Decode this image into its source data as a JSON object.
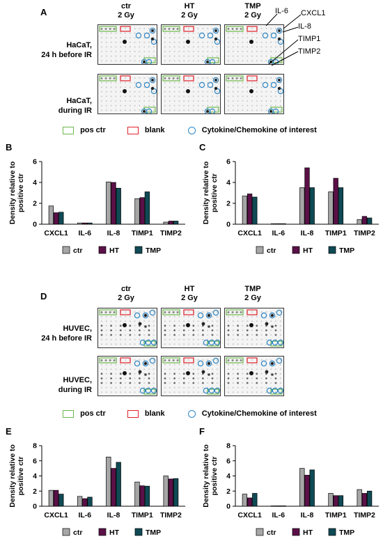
{
  "colors": {
    "ctr": "#a6a6a6",
    "HT": "#5b1048",
    "TMP": "#0f4a55",
    "pos_ctr": "#6bb84a",
    "blank": "#e0202a",
    "interest": "#2e86c6"
  },
  "panels": [
    {
      "letter": "A",
      "columns": [
        [
          "ctr",
          "2 Gy"
        ],
        [
          "HT",
          "2 Gy"
        ],
        [
          "TMP",
          "2 Gy"
        ]
      ],
      "rows": [
        [
          "HaCaT,",
          "24 h before IR"
        ],
        [
          "HaCaT,",
          "during IR"
        ]
      ],
      "callouts": [
        "IL-6",
        "CXCL1",
        "IL-8",
        "TIMP1",
        "TIMP2"
      ]
    },
    {
      "letter": "D",
      "columns": [
        [
          "ctr",
          "2 Gy"
        ],
        [
          "HT",
          "2 Gy"
        ],
        [
          "TMP",
          "2 Gy"
        ]
      ],
      "rows": [
        [
          "HUVEC,",
          "24 h before IR"
        ],
        [
          "HUVEC,",
          "during IR"
        ]
      ]
    }
  ],
  "blot_legend": {
    "pos_ctr": "pos ctr",
    "blank": "blank",
    "interest": "Cytokine/Chemokine of interest"
  },
  "chart_data": [
    {
      "panel": "B",
      "type": "bar",
      "categories": [
        "CXCL1",
        "IL-6",
        "IL-8",
        "TIMP1",
        "TIMP2"
      ],
      "ylabel": "Density relative to positive ctr",
      "ylim": [
        0,
        6
      ],
      "yticks": [
        0,
        2,
        4,
        6
      ],
      "series": [
        {
          "name": "ctr",
          "values": [
            1.75,
            0.12,
            4.05,
            2.45,
            0.2
          ]
        },
        {
          "name": "HT",
          "values": [
            1.1,
            0.12,
            4.0,
            2.55,
            0.3
          ]
        },
        {
          "name": "TMP",
          "values": [
            1.15,
            0.12,
            3.45,
            3.1,
            0.3
          ]
        }
      ]
    },
    {
      "panel": "C",
      "type": "bar",
      "categories": [
        "CXCL1",
        "IL-6",
        "IL-8",
        "TIMP1",
        "TIMP2"
      ],
      "ylabel": "Density relative to positive ctr",
      "ylim": [
        0,
        6
      ],
      "yticks": [
        0,
        2,
        4,
        6
      ],
      "series": [
        {
          "name": "ctr",
          "values": [
            2.7,
            0.05,
            3.5,
            3.1,
            0.45
          ]
        },
        {
          "name": "HT",
          "values": [
            2.9,
            0.05,
            5.4,
            4.4,
            0.75
          ]
        },
        {
          "name": "TMP",
          "values": [
            2.6,
            0.05,
            3.5,
            3.5,
            0.6
          ]
        }
      ]
    },
    {
      "panel": "E",
      "type": "bar",
      "categories": [
        "CXCL1",
        "IL-6",
        "IL-8",
        "TIMP1",
        "TIMP2"
      ],
      "ylabel": "Density relative to positive ctr",
      "ylim": [
        0,
        8
      ],
      "yticks": [
        0,
        2,
        4,
        6,
        8
      ],
      "series": [
        {
          "name": "ctr",
          "values": [
            2.1,
            1.3,
            6.5,
            3.2,
            4.0
          ]
        },
        {
          "name": "HT",
          "values": [
            2.1,
            1.0,
            5.0,
            2.7,
            3.6
          ]
        },
        {
          "name": "TMP",
          "values": [
            1.6,
            1.2,
            5.8,
            2.65,
            3.65
          ]
        }
      ]
    },
    {
      "panel": "F",
      "type": "bar",
      "categories": [
        "CXCL1",
        "IL-6",
        "IL-8",
        "TIMP1",
        "TIMP2"
      ],
      "ylabel": "Density relative to positive ctr",
      "ylim": [
        0,
        8
      ],
      "yticks": [
        0,
        2,
        4,
        6,
        8
      ],
      "series": [
        {
          "name": "ctr",
          "values": [
            1.6,
            0.05,
            5.0,
            1.7,
            2.2
          ]
        },
        {
          "name": "HT",
          "values": [
            1.1,
            0.05,
            4.1,
            1.4,
            1.7
          ]
        },
        {
          "name": "TMP",
          "values": [
            1.7,
            0.05,
            4.8,
            1.4,
            2.0
          ]
        }
      ]
    }
  ],
  "chart_legend": [
    "ctr",
    "HT",
    "TMP"
  ]
}
